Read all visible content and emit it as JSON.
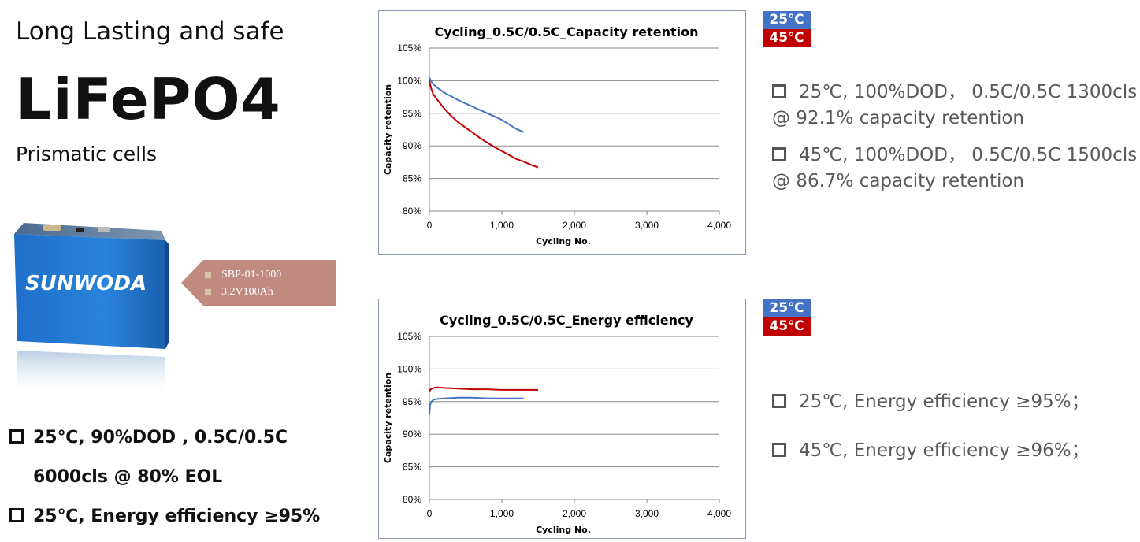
{
  "header": {
    "subtitle": "Long Lasting and safe",
    "title": "LiFePO4",
    "product_type": "Prismatic cells"
  },
  "cell_image": {
    "brand": "SUNWODA"
  },
  "tag": {
    "items": [
      "SBP-01-1000",
      "3.2V100Ah"
    ]
  },
  "bottom_bullets": [
    "25℃, 90%DOD , 0.5C/0.5C",
    "6000cls @ 80% EOL",
    "25℃, Energy efficiency ≥95%"
  ],
  "legend": {
    "t25": "25℃",
    "t45": "45℃",
    "color_25": "#4472c4",
    "color_45": "#c00000"
  },
  "notes_top": {
    "n1_line1": "25℃, 100%DOD，  0.5C/0.5C 1300cls",
    "n1_line2": "@ 92.1% capacity retention",
    "n2_line1": "45℃, 100%DOD，  0.5C/0.5C 1500cls",
    "n2_line2": "@ 86.7% capacity retention"
  },
  "notes_bottom": {
    "n1": "25℃, Energy efficiency ≥95%；",
    "n2": "45℃, Energy efficiency ≥96%；"
  },
  "chart_data": [
    {
      "type": "line",
      "title": "Cycling_0.5C/0.5C_Capacity retention",
      "xlabel": "Cycling No.",
      "ylabel": "Capacity retention",
      "xlim": [
        0,
        4000
      ],
      "ylim": [
        80,
        105
      ],
      "x_ticks": [
        "0",
        "1,000",
        "2,000",
        "3,000",
        "4,000"
      ],
      "y_ticks": [
        "80%",
        "85%",
        "90%",
        "95%",
        "100%",
        "105%"
      ],
      "grid": true,
      "series": [
        {
          "name": "25℃",
          "color": "#4472c4",
          "x": [
            0,
            20,
            50,
            100,
            200,
            300,
            400,
            500,
            600,
            700,
            800,
            900,
            1000,
            1100,
            1200,
            1300
          ],
          "y": [
            100.5,
            100.0,
            99.5,
            99.0,
            98.2,
            97.6,
            97.0,
            96.5,
            96.0,
            95.5,
            95.0,
            94.5,
            94.0,
            93.3,
            92.6,
            92.1
          ]
        },
        {
          "name": "45℃",
          "color": "#c00000",
          "x": [
            0,
            20,
            50,
            100,
            200,
            300,
            400,
            500,
            600,
            700,
            800,
            900,
            1000,
            1100,
            1200,
            1300,
            1400,
            1500
          ],
          "y": [
            100.0,
            99.0,
            98.0,
            97.2,
            95.8,
            94.6,
            93.6,
            92.8,
            92.0,
            91.2,
            90.5,
            89.8,
            89.2,
            88.6,
            88.0,
            87.6,
            87.1,
            86.7
          ]
        }
      ]
    },
    {
      "type": "line",
      "title": "Cycling_0.5C/0.5C_Energy efficiency",
      "xlabel": "Cycling No.",
      "ylabel": "Capacity retention",
      "xlim": [
        0,
        4000
      ],
      "ylim": [
        80,
        105
      ],
      "x_ticks": [
        "0",
        "1,000",
        "2,000",
        "3,000",
        "4,000"
      ],
      "y_ticks": [
        "80%",
        "85%",
        "90%",
        "95%",
        "100%",
        "105%"
      ],
      "grid": true,
      "series": [
        {
          "name": "25℃",
          "color": "#4472c4",
          "x": [
            0,
            10,
            30,
            60,
            100,
            200,
            400,
            600,
            800,
            1000,
            1200,
            1300
          ],
          "y": [
            93.0,
            94.5,
            95.0,
            95.3,
            95.4,
            95.5,
            95.6,
            95.6,
            95.5,
            95.5,
            95.5,
            95.5
          ]
        },
        {
          "name": "45℃",
          "color": "#c00000",
          "x": [
            0,
            20,
            60,
            100,
            200,
            400,
            600,
            800,
            1000,
            1200,
            1400,
            1500
          ],
          "y": [
            96.6,
            96.9,
            97.1,
            97.2,
            97.1,
            97.0,
            96.9,
            96.9,
            96.8,
            96.8,
            96.8,
            96.8
          ]
        }
      ]
    }
  ]
}
